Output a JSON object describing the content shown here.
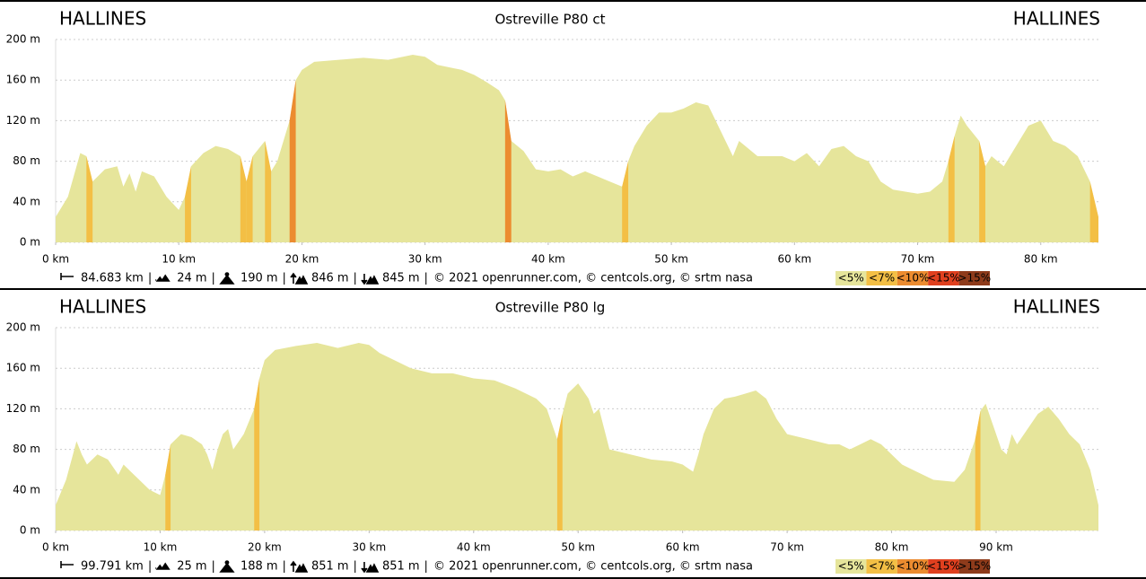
{
  "chart_data": [
    {
      "type": "area",
      "title": "Ostreville P80 ct",
      "start_label": "HALLINES",
      "end_label": "HALLINES",
      "x": [
        0,
        1,
        2,
        2.5,
        3,
        4,
        5,
        5.5,
        6,
        6.5,
        7,
        8,
        9,
        10,
        10.5,
        11,
        12,
        13,
        14,
        15,
        15.5,
        16,
        17,
        17.5,
        18,
        19,
        19.5,
        20,
        21,
        23,
        25,
        27,
        29,
        30,
        31,
        33,
        34,
        35,
        36,
        36.5,
        37,
        38,
        39,
        40,
        41,
        42,
        43,
        44,
        45,
        46,
        46.5,
        47,
        48,
        49,
        50,
        51,
        52,
        53,
        54,
        55,
        55.5,
        56,
        57,
        58,
        59,
        60,
        61,
        62,
        63,
        64,
        65,
        66,
        67,
        68,
        69,
        70,
        71,
        72,
        72.5,
        73,
        73.5,
        74,
        75,
        75.5,
        76,
        77,
        78,
        79,
        80,
        81,
        82,
        83,
        84,
        84.683
      ],
      "values": [
        25,
        45,
        88,
        85,
        60,
        72,
        75,
        55,
        68,
        50,
        70,
        65,
        45,
        32,
        45,
        75,
        88,
        95,
        92,
        85,
        60,
        85,
        100,
        70,
        80,
        120,
        160,
        170,
        178,
        180,
        182,
        180,
        185,
        183,
        175,
        170,
        165,
        158,
        150,
        140,
        100,
        90,
        72,
        70,
        72,
        65,
        70,
        65,
        60,
        55,
        80,
        95,
        115,
        128,
        128,
        132,
        138,
        135,
        110,
        85,
        100,
        95,
        85,
        85,
        85,
        80,
        88,
        75,
        92,
        95,
        85,
        80,
        60,
        52,
        50,
        48,
        50,
        60,
        80,
        105,
        125,
        115,
        100,
        75,
        85,
        75,
        95,
        115,
        120,
        100,
        95,
        85,
        60,
        25
      ],
      "color": "#e6e59b",
      "xlim": [
        0,
        84.683
      ],
      "ylim": [
        0,
        200
      ],
      "grid": true,
      "yticks": [
        {
          "value": 0,
          "label": "0 m"
        },
        {
          "value": 40,
          "label": "40 m"
        },
        {
          "value": 80,
          "label": "80 m"
        },
        {
          "value": 120,
          "label": "120 m"
        },
        {
          "value": 160,
          "label": "160 m"
        },
        {
          "value": 200,
          "label": "200 m"
        }
      ],
      "xticks": [
        {
          "value": 0,
          "label": "0 km"
        },
        {
          "value": 10,
          "label": "10 km"
        },
        {
          "value": 20,
          "label": "20 km"
        },
        {
          "value": 30,
          "label": "30 km"
        },
        {
          "value": 40,
          "label": "40 km"
        },
        {
          "value": 50,
          "label": "50 km"
        },
        {
          "value": 60,
          "label": "60 km"
        },
        {
          "value": 70,
          "label": "70 km"
        },
        {
          "value": 80,
          "label": "80 km"
        }
      ],
      "stats": {
        "distance": "84.683 km",
        "min": "24 m",
        "max": "190 m",
        "gain": "846 m",
        "loss": "845 m"
      },
      "separator": "|",
      "credits": "© 2021 openrunner.com, © centcols.org, © srtm nasa",
      "legend": [
        {
          "label": "<5%",
          "color": "#e6e59b"
        },
        {
          "label": "<7%",
          "color": "#f3bf45"
        },
        {
          "label": "<10%",
          "color": "#ec8c30"
        },
        {
          "label": "<15%",
          "color": "#e0401f"
        },
        {
          "label": ">15%",
          "color": "#8e3b1b"
        }
      ]
    },
    {
      "type": "area",
      "title": "Ostreville P80 lg",
      "start_label": "HALLINES",
      "end_label": "HALLINES",
      "x": [
        0,
        1,
        2,
        2.5,
        3,
        4,
        5,
        6,
        6.5,
        7,
        8,
        9,
        10,
        10.5,
        11,
        12,
        13,
        14,
        14.5,
        15,
        15.5,
        16,
        16.5,
        17,
        18,
        19,
        19.5,
        20,
        21,
        23,
        25,
        27,
        29,
        30,
        31,
        32,
        34,
        36,
        38,
        40,
        42,
        44,
        46,
        47,
        47.5,
        48,
        48.5,
        49,
        50,
        51,
        51.5,
        52,
        53,
        55,
        57,
        59,
        60,
        61,
        61.5,
        62,
        63,
        64,
        65,
        66,
        67,
        68,
        69,
        70,
        72,
        74,
        75,
        76,
        77,
        78,
        79,
        80,
        81,
        82,
        83,
        84,
        86,
        87,
        88,
        88.5,
        89,
        89.5,
        90,
        90.5,
        91,
        91.5,
        92,
        93,
        94,
        95,
        96,
        97,
        98,
        99,
        99.791
      ],
      "values": [
        25,
        50,
        88,
        75,
        65,
        75,
        70,
        55,
        65,
        60,
        50,
        40,
        35,
        55,
        85,
        95,
        92,
        85,
        75,
        60,
        80,
        95,
        100,
        80,
        95,
        120,
        150,
        168,
        178,
        182,
        185,
        180,
        185,
        183,
        175,
        170,
        160,
        155,
        155,
        150,
        148,
        140,
        130,
        120,
        105,
        90,
        115,
        135,
        145,
        130,
        115,
        120,
        80,
        75,
        70,
        68,
        65,
        58,
        75,
        95,
        120,
        130,
        132,
        135,
        138,
        130,
        110,
        95,
        90,
        85,
        85,
        80,
        85,
        90,
        85,
        75,
        65,
        60,
        55,
        50,
        48,
        60,
        90,
        118,
        125,
        110,
        95,
        80,
        75,
        95,
        85,
        100,
        115,
        122,
        110,
        95,
        85,
        60,
        25
      ],
      "color": "#e6e59b",
      "xlim": [
        0,
        99.791
      ],
      "ylim": [
        0,
        200
      ],
      "grid": true,
      "yticks": [
        {
          "value": 0,
          "label": "0 m"
        },
        {
          "value": 40,
          "label": "40 m"
        },
        {
          "value": 80,
          "label": "80 m"
        },
        {
          "value": 120,
          "label": "120 m"
        },
        {
          "value": 160,
          "label": "160 m"
        },
        {
          "value": 200,
          "label": "200 m"
        }
      ],
      "xticks": [
        {
          "value": 0,
          "label": "0 km"
        },
        {
          "value": 10,
          "label": "10 km"
        },
        {
          "value": 20,
          "label": "20 km"
        },
        {
          "value": 30,
          "label": "30 km"
        },
        {
          "value": 40,
          "label": "40 km"
        },
        {
          "value": 50,
          "label": "50 km"
        },
        {
          "value": 60,
          "label": "60 km"
        },
        {
          "value": 70,
          "label": "70 km"
        },
        {
          "value": 80,
          "label": "80 km"
        },
        {
          "value": 90,
          "label": "90 km"
        }
      ],
      "stats": {
        "distance": "99.791 km",
        "min": "25 m",
        "max": "188 m",
        "gain": "851 m",
        "loss": "851 m"
      },
      "separator": "|",
      "credits": "© 2021 openrunner.com, © centcols.org, © srtm nasa",
      "legend": [
        {
          "label": "<5%",
          "color": "#e6e59b"
        },
        {
          "label": "<7%",
          "color": "#f3bf45"
        },
        {
          "label": "<10%",
          "color": "#ec8c30"
        },
        {
          "label": "<15%",
          "color": "#e0401f"
        },
        {
          "label": ">15%",
          "color": "#8e3b1b"
        }
      ]
    }
  ]
}
